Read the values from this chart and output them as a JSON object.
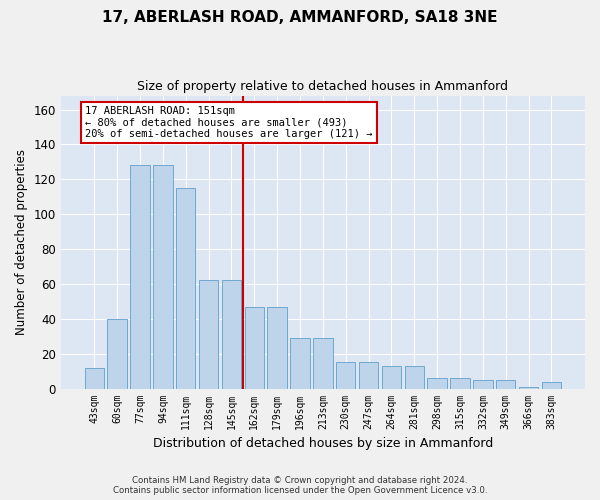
{
  "title": "17, ABERLASH ROAD, AMMANFORD, SA18 3NE",
  "subtitle": "Size of property relative to detached houses in Ammanford",
  "xlabel": "Distribution of detached houses by size in Ammanford",
  "ylabel": "Number of detached properties",
  "categories": [
    "43sqm",
    "60sqm",
    "77sqm",
    "94sqm",
    "111sqm",
    "128sqm",
    "145sqm",
    "162sqm",
    "179sqm",
    "196sqm",
    "213sqm",
    "230sqm",
    "247sqm",
    "264sqm",
    "281sqm",
    "298sqm",
    "315sqm",
    "332sqm",
    "349sqm",
    "366sqm",
    "383sqm"
  ],
  "values": [
    12,
    40,
    128,
    128,
    115,
    62,
    62,
    47,
    47,
    29,
    29,
    15,
    15,
    13,
    13,
    6,
    6,
    5,
    5,
    1,
    4
  ],
  "bar_color": "#bdd4eb",
  "bar_edge_color": "#6fa8d0",
  "background_color": "#dde6f3",
  "grid_color": "#ffffff",
  "red_line_x": 7.0,
  "annotation_text": "17 ABERLASH ROAD: 151sqm\n← 80% of detached houses are smaller (493)\n20% of semi-detached houses are larger (121) →",
  "annotation_box_color": "#ffffff",
  "annotation_box_edge_color": "#cc0000",
  "footer_line1": "Contains HM Land Registry data © Crown copyright and database right 2024.",
  "footer_line2": "Contains public sector information licensed under the Open Government Licence v3.0.",
  "ylim": [
    0,
    168
  ],
  "yticks": [
    0,
    20,
    40,
    60,
    80,
    100,
    120,
    140,
    160
  ]
}
